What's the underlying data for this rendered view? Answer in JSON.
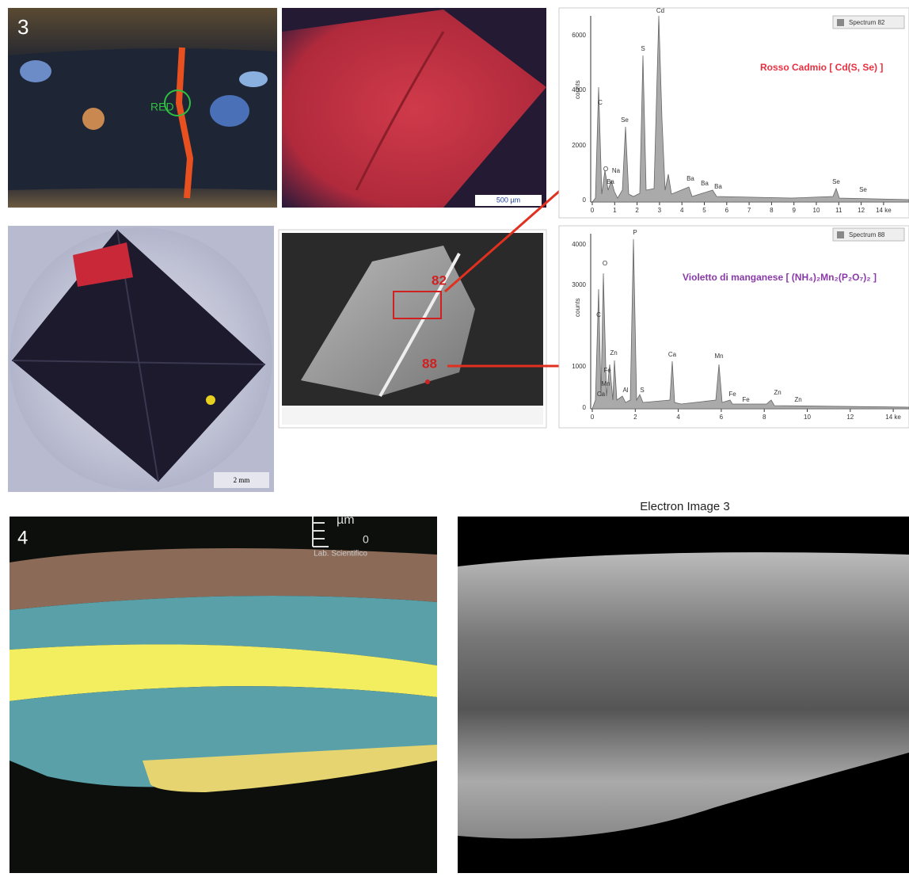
{
  "panel_3": {
    "number": "3",
    "photo_1": {
      "marker": "RED"
    },
    "photo_2": {
      "scale_bar": "500 µm"
    },
    "mount": {
      "scale_bar": "2 mm"
    },
    "sem": {
      "area_1": "82",
      "area_2": "88"
    },
    "spectrum_1": {
      "name": "Spectrum 82",
      "pigment": "Rosso Cadmio [ Cd(S, Se) ]",
      "y_axis_label": "counts",
      "y_ticks": [
        "6000",
        "4000",
        "2000",
        "0"
      ],
      "x_ticks": [
        "0",
        "1",
        "2",
        "3",
        "4",
        "5",
        "6",
        "7",
        "8",
        "9",
        "10",
        "11",
        "12",
        "14 ke"
      ],
      "peaks": [
        "C",
        "O",
        "Na",
        "Ba",
        "Se",
        "S",
        "Cd",
        "Ba",
        "Ba",
        "Ba",
        "Se",
        "Se"
      ]
    },
    "spectrum_2": {
      "name": "Spectrum 88",
      "pigment": "Violetto di manganese [ (NH₄)₂Mn₂(P₂O₇)₂ ]",
      "y_axis_label": "counts",
      "y_ticks": [
        "4000",
        "3000",
        "1000",
        "0"
      ],
      "x_ticks": [
        "0",
        "2",
        "4",
        "6",
        "8",
        "10",
        "12",
        "14 ke"
      ],
      "peaks": [
        "O",
        "C",
        "Zn",
        "Fe",
        "Mn",
        "Ca",
        "Al",
        "S",
        "P",
        "Ca",
        "Mn",
        "Fe",
        "Fe",
        "Zn",
        "Zn"
      ]
    }
  },
  "panel_4": {
    "number": "4",
    "scale_unit": "µm",
    "scale_zero": "0",
    "lab": "Lab. Scientifico",
    "electron_image_title": "Electron Image 3"
  }
}
